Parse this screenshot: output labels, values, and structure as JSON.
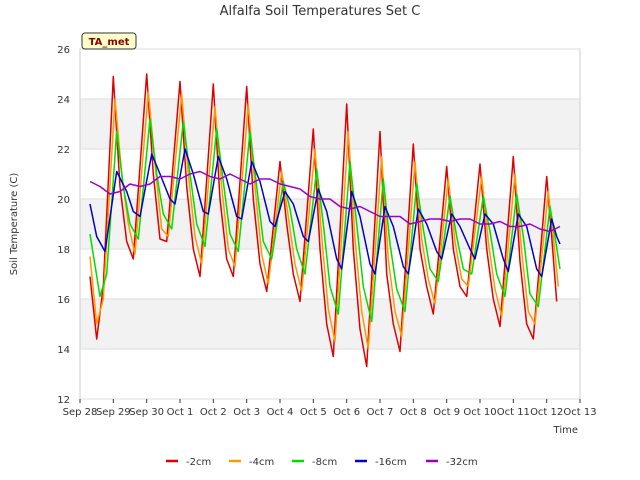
{
  "chart_data": {
    "type": "line",
    "title": "Alfalfa Soil Temperatures Set C",
    "xlabel": "Time",
    "ylabel": "Soil Temperature (C)",
    "badge": "TA_met",
    "xlim": [
      0,
      15
    ],
    "ylim": [
      12,
      26
    ],
    "y_ticks": [
      12,
      14,
      16,
      18,
      20,
      22,
      24,
      26
    ],
    "x_ticks": [
      "Sep 28",
      "Sep 29",
      "Sep 30",
      "Oct 1",
      "Oct 2",
      "Oct 3",
      "Oct 4",
      "Oct 5",
      "Oct 6",
      "Oct 7",
      "Oct 8",
      "Oct 9",
      "Oct 10",
      "Oct 11",
      "Oct 12",
      "Oct 13"
    ],
    "grid": true,
    "legend_position": "bottom",
    "series": [
      {
        "name": "-2cm",
        "color": "#dd0000",
        "values": [
          [
            0.3,
            16.9
          ],
          [
            0.5,
            14.4
          ],
          [
            0.7,
            16.5
          ],
          [
            1.0,
            24.9
          ],
          [
            1.2,
            20.5
          ],
          [
            1.4,
            18.3
          ],
          [
            1.6,
            17.6
          ],
          [
            2.0,
            25.0
          ],
          [
            2.2,
            21.0
          ],
          [
            2.4,
            18.4
          ],
          [
            2.6,
            18.3
          ],
          [
            3.0,
            24.7
          ],
          [
            3.2,
            20.5
          ],
          [
            3.4,
            18.0
          ],
          [
            3.6,
            16.9
          ],
          [
            4.0,
            24.6
          ],
          [
            4.2,
            20.0
          ],
          [
            4.4,
            17.6
          ],
          [
            4.6,
            16.9
          ],
          [
            5.0,
            24.5
          ],
          [
            5.2,
            20.0
          ],
          [
            5.4,
            17.4
          ],
          [
            5.6,
            16.3
          ],
          [
            6.0,
            21.5
          ],
          [
            6.2,
            19.0
          ],
          [
            6.4,
            17.0
          ],
          [
            6.6,
            15.9
          ],
          [
            7.0,
            22.8
          ],
          [
            7.2,
            18.0
          ],
          [
            7.4,
            15.0
          ],
          [
            7.6,
            13.7
          ],
          [
            8.0,
            23.8
          ],
          [
            8.2,
            18.0
          ],
          [
            8.4,
            14.8
          ],
          [
            8.6,
            13.3
          ],
          [
            9.0,
            22.7
          ],
          [
            9.2,
            17.0
          ],
          [
            9.4,
            15.0
          ],
          [
            9.6,
            13.9
          ],
          [
            10.0,
            22.2
          ],
          [
            10.2,
            18.0
          ],
          [
            10.4,
            16.5
          ],
          [
            10.6,
            15.4
          ],
          [
            11.0,
            21.3
          ],
          [
            11.2,
            18.0
          ],
          [
            11.4,
            16.5
          ],
          [
            11.6,
            16.1
          ],
          [
            12.0,
            21.4
          ],
          [
            12.2,
            18.0
          ],
          [
            12.4,
            16.0
          ],
          [
            12.6,
            14.9
          ],
          [
            13.0,
            21.7
          ],
          [
            13.2,
            17.5
          ],
          [
            13.4,
            15.0
          ],
          [
            13.6,
            14.4
          ],
          [
            14.0,
            20.9
          ],
          [
            14.15,
            18.5
          ],
          [
            14.3,
            15.9
          ]
        ]
      },
      {
        "name": "-4cm",
        "color": "#ff9900",
        "values": [
          [
            0.3,
            17.7
          ],
          [
            0.5,
            15.0
          ],
          [
            0.7,
            16.0
          ],
          [
            1.05,
            24.0
          ],
          [
            1.25,
            21.0
          ],
          [
            1.45,
            19.0
          ],
          [
            1.65,
            17.8
          ],
          [
            2.05,
            24.3
          ],
          [
            2.25,
            21.4
          ],
          [
            2.45,
            18.8
          ],
          [
            2.65,
            18.5
          ],
          [
            3.05,
            24.2
          ],
          [
            3.25,
            21.0
          ],
          [
            3.45,
            18.5
          ],
          [
            3.65,
            17.4
          ],
          [
            4.05,
            23.7
          ],
          [
            4.25,
            20.5
          ],
          [
            4.45,
            18.0
          ],
          [
            4.65,
            17.3
          ],
          [
            5.05,
            23.8
          ],
          [
            5.25,
            20.5
          ],
          [
            5.45,
            17.8
          ],
          [
            5.65,
            16.6
          ],
          [
            6.05,
            21.1
          ],
          [
            6.25,
            19.3
          ],
          [
            6.45,
            17.4
          ],
          [
            6.65,
            16.3
          ],
          [
            7.05,
            22.0
          ],
          [
            7.25,
            18.5
          ],
          [
            7.45,
            15.6
          ],
          [
            7.65,
            14.3
          ],
          [
            8.05,
            22.7
          ],
          [
            8.25,
            18.4
          ],
          [
            8.45,
            15.5
          ],
          [
            8.65,
            14.0
          ],
          [
            9.05,
            21.7
          ],
          [
            9.25,
            17.6
          ],
          [
            9.45,
            15.5
          ],
          [
            9.65,
            14.5
          ],
          [
            10.05,
            21.5
          ],
          [
            10.25,
            18.4
          ],
          [
            10.45,
            16.8
          ],
          [
            10.65,
            15.8
          ],
          [
            11.05,
            20.8
          ],
          [
            11.25,
            18.3
          ],
          [
            11.45,
            16.8
          ],
          [
            11.65,
            16.5
          ],
          [
            12.05,
            20.9
          ],
          [
            12.25,
            18.3
          ],
          [
            12.45,
            16.4
          ],
          [
            12.65,
            15.3
          ],
          [
            13.05,
            21.0
          ],
          [
            13.25,
            17.9
          ],
          [
            13.45,
            15.5
          ],
          [
            13.65,
            15.0
          ],
          [
            14.05,
            20.3
          ],
          [
            14.2,
            18.5
          ],
          [
            14.35,
            16.5
          ]
        ]
      },
      {
        "name": "-8cm",
        "color": "#00dd00",
        "values": [
          [
            0.3,
            18.6
          ],
          [
            0.6,
            16.1
          ],
          [
            0.8,
            17.0
          ],
          [
            1.1,
            22.7
          ],
          [
            1.3,
            20.5
          ],
          [
            1.5,
            19.0
          ],
          [
            1.75,
            18.4
          ],
          [
            2.1,
            23.2
          ],
          [
            2.3,
            21.0
          ],
          [
            2.5,
            19.4
          ],
          [
            2.75,
            18.8
          ],
          [
            3.1,
            23.1
          ],
          [
            3.3,
            21.0
          ],
          [
            3.5,
            19.0
          ],
          [
            3.75,
            18.1
          ],
          [
            4.1,
            22.8
          ],
          [
            4.3,
            20.7
          ],
          [
            4.5,
            18.6
          ],
          [
            4.75,
            17.9
          ],
          [
            5.1,
            22.7
          ],
          [
            5.3,
            20.5
          ],
          [
            5.5,
            18.3
          ],
          [
            5.75,
            17.6
          ],
          [
            6.1,
            20.7
          ],
          [
            6.3,
            19.6
          ],
          [
            6.5,
            18.0
          ],
          [
            6.75,
            17.0
          ],
          [
            7.1,
            21.2
          ],
          [
            7.3,
            19.0
          ],
          [
            7.5,
            16.5
          ],
          [
            7.75,
            15.4
          ],
          [
            8.1,
            21.5
          ],
          [
            8.3,
            19.0
          ],
          [
            8.5,
            16.5
          ],
          [
            8.75,
            15.1
          ],
          [
            9.1,
            20.8
          ],
          [
            9.3,
            18.2
          ],
          [
            9.5,
            16.4
          ],
          [
            9.75,
            15.5
          ],
          [
            10.1,
            20.6
          ],
          [
            10.3,
            18.8
          ],
          [
            10.5,
            17.2
          ],
          [
            10.75,
            16.7
          ],
          [
            11.1,
            20.1
          ],
          [
            11.3,
            18.5
          ],
          [
            11.5,
            17.2
          ],
          [
            11.75,
            17.0
          ],
          [
            12.1,
            20.1
          ],
          [
            12.3,
            18.7
          ],
          [
            12.5,
            17.0
          ],
          [
            12.75,
            16.1
          ],
          [
            13.1,
            20.2
          ],
          [
            13.3,
            18.5
          ],
          [
            13.5,
            16.2
          ],
          [
            13.75,
            15.7
          ],
          [
            14.1,
            19.7
          ],
          [
            14.25,
            18.5
          ],
          [
            14.4,
            17.2
          ]
        ]
      },
      {
        "name": "-16cm",
        "color": "#0000cc",
        "values": [
          [
            0.3,
            19.8
          ],
          [
            0.5,
            18.5
          ],
          [
            0.75,
            17.9
          ],
          [
            1.1,
            21.1
          ],
          [
            1.4,
            20.3
          ],
          [
            1.6,
            19.5
          ],
          [
            1.8,
            19.3
          ],
          [
            2.15,
            21.8
          ],
          [
            2.4,
            21.0
          ],
          [
            2.7,
            20.0
          ],
          [
            2.85,
            19.8
          ],
          [
            3.15,
            22.0
          ],
          [
            3.4,
            21.0
          ],
          [
            3.7,
            19.5
          ],
          [
            3.85,
            19.4
          ],
          [
            4.15,
            21.7
          ],
          [
            4.4,
            20.8
          ],
          [
            4.7,
            19.3
          ],
          [
            4.85,
            19.2
          ],
          [
            5.15,
            21.5
          ],
          [
            5.4,
            20.7
          ],
          [
            5.7,
            19.1
          ],
          [
            5.85,
            18.9
          ],
          [
            6.15,
            20.3
          ],
          [
            6.4,
            19.8
          ],
          [
            6.7,
            18.5
          ],
          [
            6.85,
            18.3
          ],
          [
            7.15,
            20.4
          ],
          [
            7.4,
            19.5
          ],
          [
            7.7,
            17.6
          ],
          [
            7.85,
            17.2
          ],
          [
            8.15,
            20.3
          ],
          [
            8.4,
            19.3
          ],
          [
            8.7,
            17.4
          ],
          [
            8.85,
            17.0
          ],
          [
            9.15,
            19.7
          ],
          [
            9.4,
            18.9
          ],
          [
            9.7,
            17.3
          ],
          [
            9.85,
            17.0
          ],
          [
            10.15,
            19.6
          ],
          [
            10.4,
            19.0
          ],
          [
            10.7,
            17.9
          ],
          [
            10.85,
            17.6
          ],
          [
            11.15,
            19.4
          ],
          [
            11.4,
            18.9
          ],
          [
            11.7,
            18.0
          ],
          [
            11.85,
            17.6
          ],
          [
            12.15,
            19.4
          ],
          [
            12.4,
            19.0
          ],
          [
            12.7,
            17.6
          ],
          [
            12.85,
            17.1
          ],
          [
            13.15,
            19.4
          ],
          [
            13.4,
            18.9
          ],
          [
            13.7,
            17.2
          ],
          [
            13.85,
            16.9
          ],
          [
            14.15,
            19.2
          ],
          [
            14.3,
            18.5
          ],
          [
            14.4,
            18.2
          ]
        ]
      },
      {
        "name": "-32cm",
        "color": "#9900cc",
        "values": [
          [
            0.3,
            20.7
          ],
          [
            0.6,
            20.5
          ],
          [
            0.9,
            20.2
          ],
          [
            1.2,
            20.3
          ],
          [
            1.5,
            20.6
          ],
          [
            1.8,
            20.5
          ],
          [
            2.1,
            20.6
          ],
          [
            2.4,
            20.9
          ],
          [
            2.7,
            20.9
          ],
          [
            3.0,
            20.8
          ],
          [
            3.3,
            21.0
          ],
          [
            3.6,
            21.1
          ],
          [
            3.9,
            20.9
          ],
          [
            4.2,
            20.8
          ],
          [
            4.5,
            21.0
          ],
          [
            4.8,
            20.8
          ],
          [
            5.1,
            20.6
          ],
          [
            5.4,
            20.8
          ],
          [
            5.7,
            20.8
          ],
          [
            6.0,
            20.6
          ],
          [
            6.3,
            20.5
          ],
          [
            6.6,
            20.4
          ],
          [
            6.9,
            20.1
          ],
          [
            7.2,
            20.0
          ],
          [
            7.5,
            20.0
          ],
          [
            7.8,
            19.7
          ],
          [
            8.1,
            19.6
          ],
          [
            8.4,
            19.7
          ],
          [
            8.7,
            19.5
          ],
          [
            9.0,
            19.3
          ],
          [
            9.3,
            19.3
          ],
          [
            9.6,
            19.3
          ],
          [
            9.9,
            19.0
          ],
          [
            10.2,
            19.1
          ],
          [
            10.5,
            19.2
          ],
          [
            10.8,
            19.2
          ],
          [
            11.1,
            19.1
          ],
          [
            11.4,
            19.2
          ],
          [
            11.7,
            19.2
          ],
          [
            12.0,
            19.0
          ],
          [
            12.3,
            19.0
          ],
          [
            12.6,
            19.1
          ],
          [
            12.9,
            18.9
          ],
          [
            13.2,
            18.9
          ],
          [
            13.5,
            19.0
          ],
          [
            13.8,
            18.8
          ],
          [
            14.1,
            18.7
          ],
          [
            14.4,
            18.9
          ]
        ]
      }
    ]
  }
}
